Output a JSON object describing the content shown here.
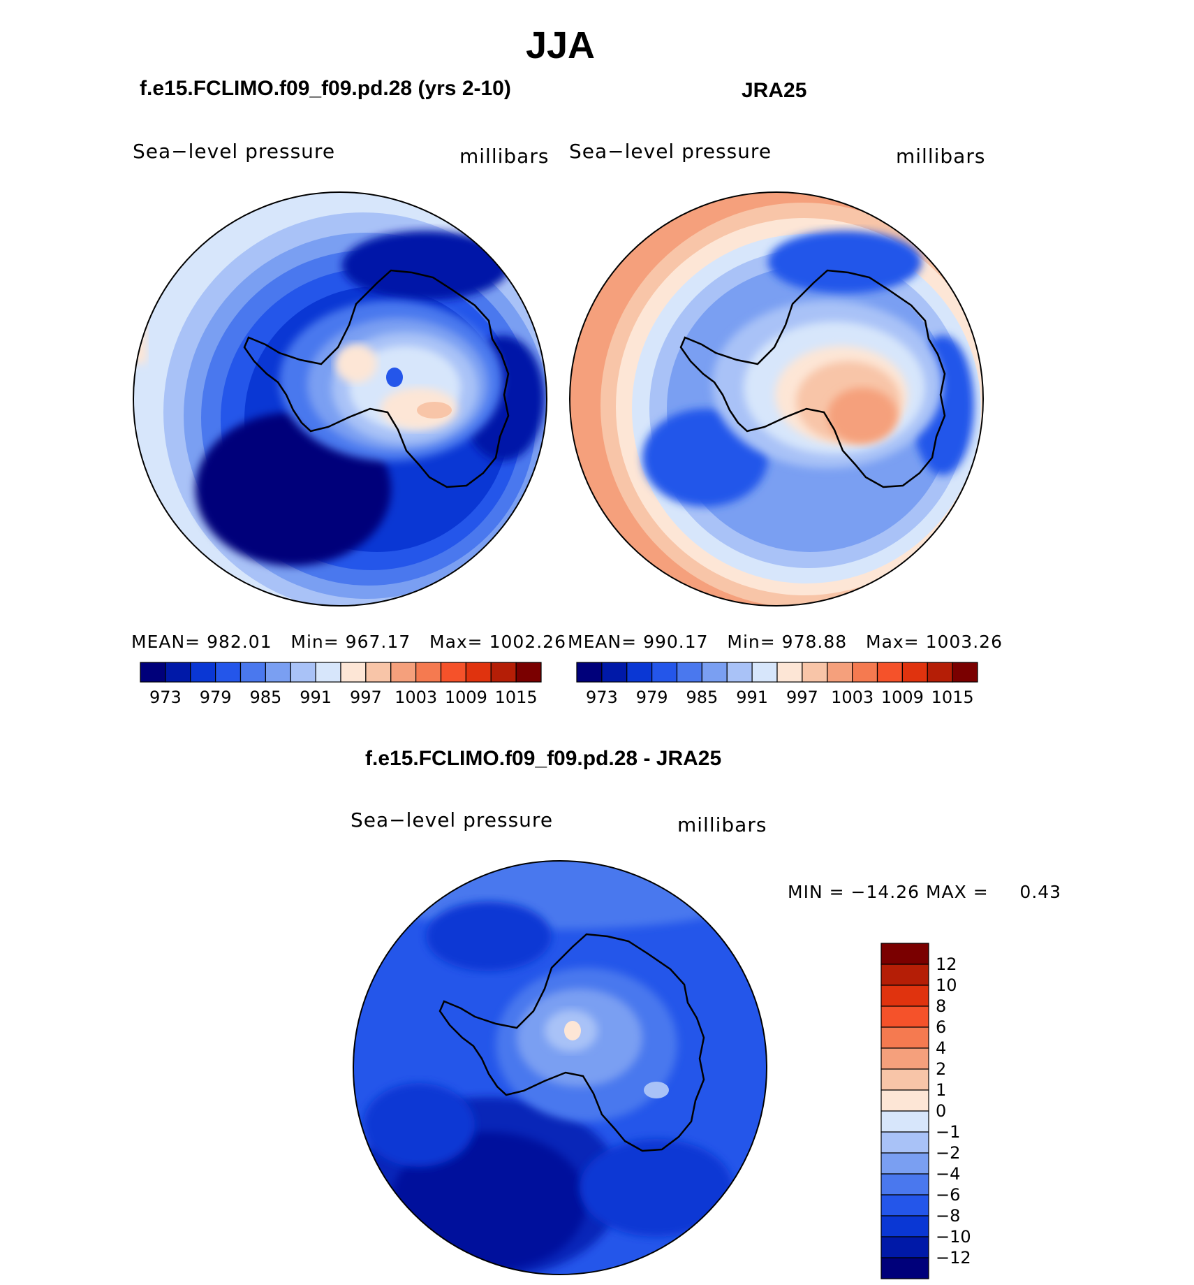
{
  "figure": {
    "title": "JJA"
  },
  "panels": [
    {
      "id": "model",
      "title": "f.e15.FCLIMO.f09_f09.pd.28 (yrs 2-10)",
      "variable": "Sea−level pressure",
      "units": "millibars",
      "stats": {
        "mean_label": "MEAN=",
        "mean": "982.01",
        "min_label": "Min=",
        "min": "967.17",
        "max_label": "Max=",
        "max": "1002.26"
      }
    },
    {
      "id": "obs",
      "title": "JRA25",
      "variable": "Sea−level pressure",
      "units": "millibars",
      "stats": {
        "mean_label": "MEAN=",
        "mean": "990.17",
        "min_label": "Min=",
        "min": "978.88",
        "max_label": "Max=",
        "max": "1003.26"
      }
    },
    {
      "id": "diff",
      "title": "f.e15.FCLIMO.f09_f09.pd.28 - JRA25",
      "variable": "Sea−level pressure",
      "units": "millibars",
      "stats": {
        "min_label": "MIN =",
        "min": "−14.26",
        "max_label": "MAX =",
        "max": "0.43"
      }
    }
  ],
  "colorbar_abs": {
    "labels": [
      "973",
      "979",
      "985",
      "991",
      "997",
      "1003",
      "1009",
      "1015"
    ],
    "colors": [
      "#00007a",
      "#0019a8",
      "#0a37d4",
      "#2456ea",
      "#4a78ee",
      "#7a9ff2",
      "#a9c2f7",
      "#d7e6fb",
      "#fde6d6",
      "#f8c5a8",
      "#f5a07c",
      "#f57a50",
      "#f5522a",
      "#e0330e",
      "#b51e06",
      "#7a0000"
    ]
  },
  "colorbar_diff": {
    "labels": [
      "12",
      "10",
      "8",
      "6",
      "4",
      "2",
      "1",
      "0",
      "−1",
      "−2",
      "−4",
      "−6",
      "−8",
      "−10",
      "−12"
    ],
    "colors_top_to_bottom": [
      "#7a0000",
      "#b51e06",
      "#e0330e",
      "#f5522a",
      "#f57a50",
      "#f5a07c",
      "#f8c5a8",
      "#fde6d6",
      "#d7e6fb",
      "#a9c2f7",
      "#7a9ff2",
      "#4a78ee",
      "#2456ea",
      "#0a37d4",
      "#0019a8",
      "#00007a"
    ]
  }
}
